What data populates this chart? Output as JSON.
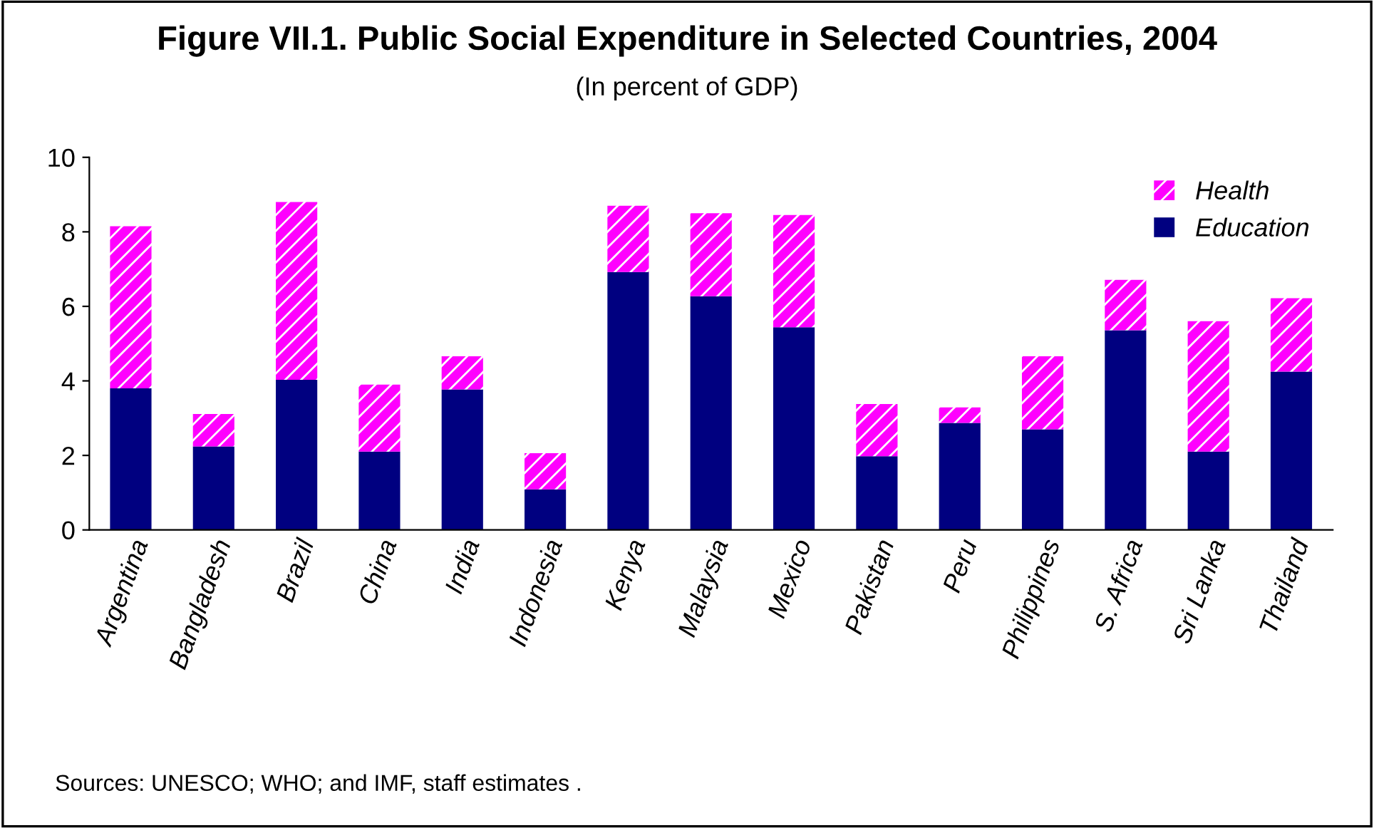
{
  "chart_data": {
    "type": "bar",
    "title": "Figure VII.1. Public Social Expenditure in Selected Countries, 2004",
    "subtitle": "(In percent of GDP)",
    "categories": [
      "Argentina",
      "Bangladesh",
      "Brazil",
      "China",
      "India",
      "Indonesia",
      "Kenya",
      "Malaysia",
      "Mexico",
      "Pakistan",
      "Peru",
      "Philippines",
      "S. Africa",
      "Sri Lanka",
      "Thailand"
    ],
    "stacked": true,
    "series": [
      {
        "name": "Education",
        "color": "#000080",
        "values": [
          3.8,
          2.24,
          4.03,
          2.1,
          3.77,
          1.09,
          6.92,
          6.27,
          5.44,
          1.98,
          2.87,
          2.7,
          5.36,
          2.1,
          4.25
        ]
      },
      {
        "name": "Health",
        "color": "#ff00ff",
        "values": [
          4.35,
          0.87,
          4.77,
          1.8,
          0.89,
          0.97,
          1.78,
          2.23,
          3.01,
          1.4,
          0.42,
          1.96,
          1.35,
          3.5,
          1.97
        ]
      }
    ],
    "ylim": [
      0,
      10
    ],
    "yticks": [
      0,
      2,
      4,
      6,
      8,
      10
    ],
    "grid": false,
    "legend": "top right",
    "annotations": [
      "Sources: UNESCO; WHO; and IMF, staff estimates ."
    ]
  }
}
